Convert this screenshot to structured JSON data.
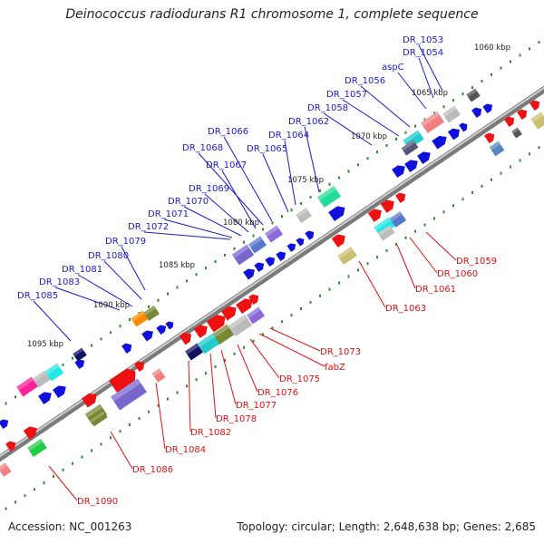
{
  "title": "Deinococcus radiodurans R1 chromosome 1, complete sequence",
  "footer": {
    "accession": "Accession: NC_001263",
    "topology": "Topology: circular; Length: 2,648,638 bp; Genes: 2,685"
  },
  "colors": {
    "forward_label": "#1a1acc",
    "reverse_label": "#dd1111",
    "backbone": "#888888"
  },
  "scale_labels": [
    "1060 kbp",
    "1065 kbp",
    "1070 kbp",
    "1075 kbp",
    "1080 kbp",
    "1085 kbp",
    "1090 kbp",
    "1095 kbp"
  ],
  "forward_labels": [
    "DR_1053",
    "DR_1054",
    "aspC",
    "DR_1056",
    "DR_1057",
    "DR_1058",
    "DR_1062",
    "DR_1064",
    "DR_1065",
    "DR_1066",
    "DR_1068",
    "DR_1067",
    "DR_1069",
    "DR_1070",
    "DR_1071",
    "DR_1072",
    "DR_1079",
    "DR_1080",
    "DR_1081",
    "DR_1083",
    "DR_1085"
  ],
  "reverse_labels": [
    "DR_1059",
    "DR_1060",
    "DR_1061",
    "DR_1063",
    "DR_1073",
    "fabZ",
    "DR_1075",
    "DR_1076",
    "DR_1077",
    "DR_1078",
    "DR_1082",
    "DR_1084",
    "DR_1086",
    "DR_1090"
  ]
}
